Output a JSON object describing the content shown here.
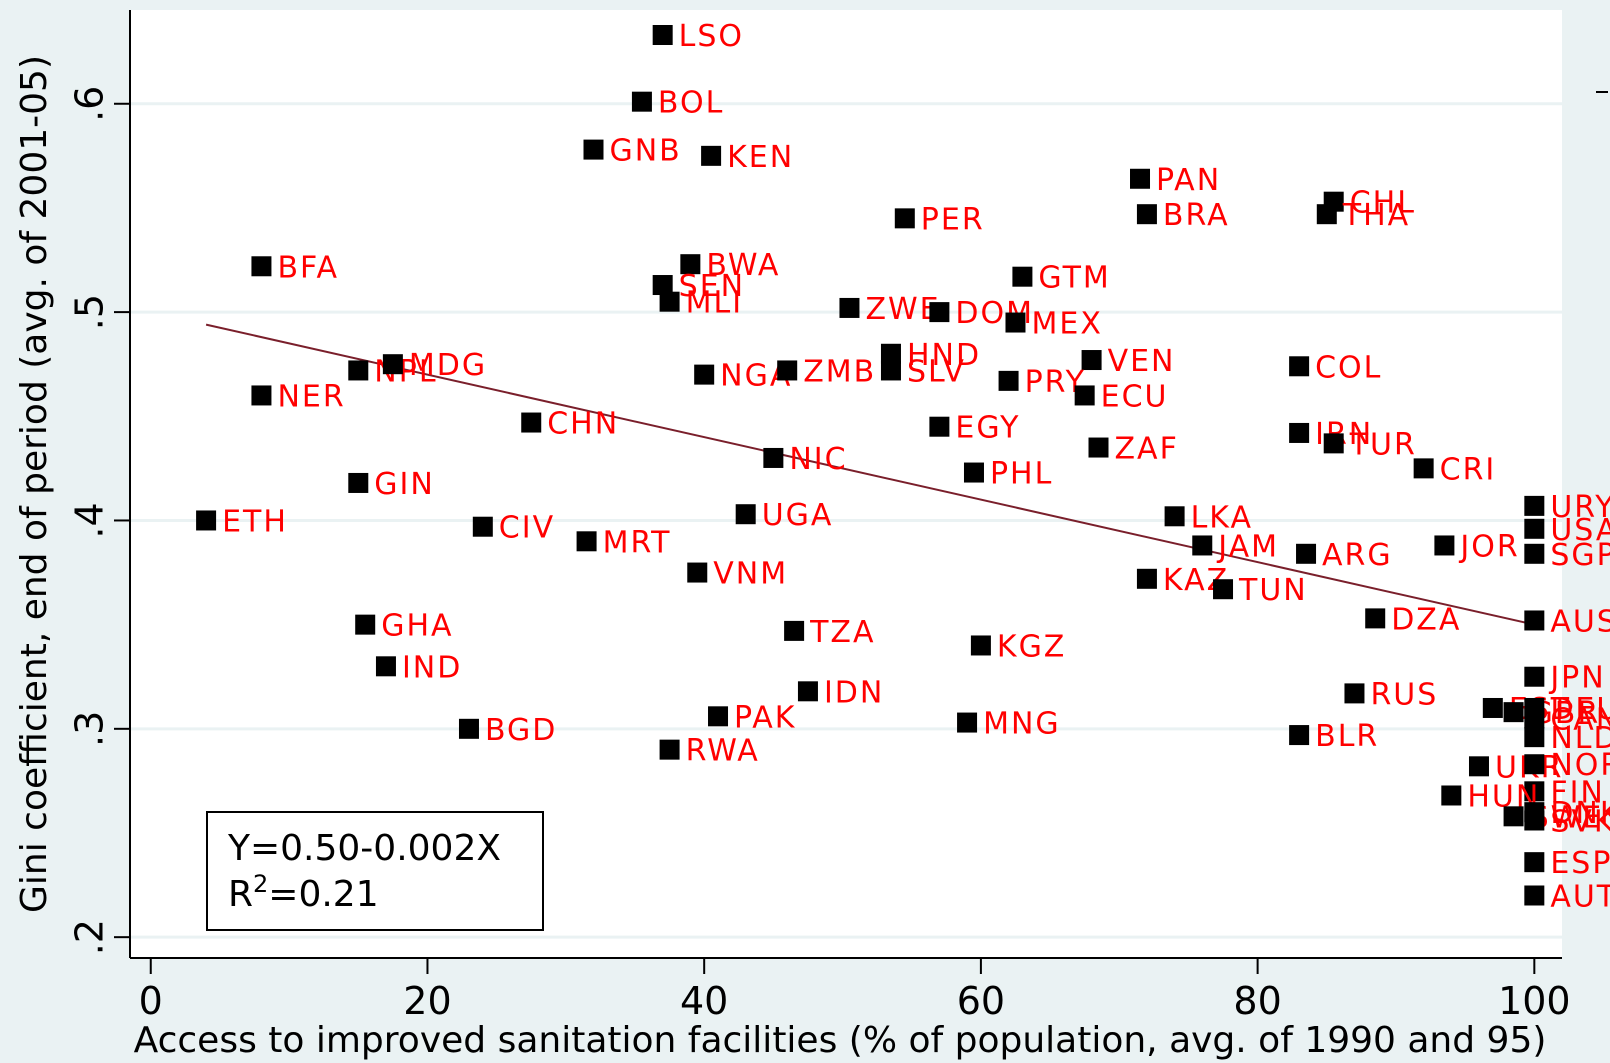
{
  "chart_data": {
    "type": "scatter",
    "xlabel": "Access to improved sanitation facilities (% of population, avg. of 1990 and 95)",
    "ylabel": "Gini coefficient, end of period (avg. of 2001-05)",
    "xlim": [
      -1.5,
      102
    ],
    "ylim": [
      0.19,
      0.645
    ],
    "x_ticks": [
      0,
      20,
      40,
      60,
      80,
      100
    ],
    "x_tick_labels": [
      "0",
      "20",
      "40",
      "60",
      "80",
      "100"
    ],
    "y_ticks": [
      0.2,
      0.3,
      0.4,
      0.5,
      0.6
    ],
    "y_tick_labels": [
      ".2",
      ".3",
      ".4",
      ".5",
      ".6"
    ],
    "grid": "horizontal",
    "marker_color": "#000000",
    "label_color": "#ff0000",
    "fit_color": "#7a1f2b",
    "background": "#eaf2f3",
    "fit_line": {
      "intercept": 0.5,
      "slope": -0.0015,
      "x_range": [
        4,
        100
      ]
    },
    "annotation": {
      "equation": "Y=0.50-0.002X",
      "r2_label": "R",
      "r2_sup": "2",
      "r2_value": "=0.21"
    },
    "points": [
      {
        "label": "LSO",
        "x": 37,
        "y": 0.633
      },
      {
        "label": "BOL",
        "x": 35.5,
        "y": 0.601
      },
      {
        "label": "GNB",
        "x": 32,
        "y": 0.578
      },
      {
        "label": "KEN",
        "x": 40.5,
        "y": 0.575
      },
      {
        "label": "PAN",
        "x": 71.5,
        "y": 0.564
      },
      {
        "label": "CHL",
        "x": 85.5,
        "y": 0.553
      },
      {
        "label": "THA",
        "x": 85,
        "y": 0.547
      },
      {
        "label": "PER",
        "x": 54.5,
        "y": 0.545
      },
      {
        "label": "BRA",
        "x": 72,
        "y": 0.547
      },
      {
        "label": "BFA",
        "x": 8,
        "y": 0.522
      },
      {
        "label": "BWA",
        "x": 39,
        "y": 0.523
      },
      {
        "label": "SEN",
        "x": 37,
        "y": 0.513
      },
      {
        "label": "MLI",
        "x": 37.5,
        "y": 0.505
      },
      {
        "label": "GTM",
        "x": 63,
        "y": 0.517
      },
      {
        "label": "ZWE",
        "x": 50.5,
        "y": 0.502
      },
      {
        "label": "DOM",
        "x": 57,
        "y": 0.5
      },
      {
        "label": "MEX",
        "x": 62.5,
        "y": 0.495
      },
      {
        "label": "HND",
        "x": 53.5,
        "y": 0.48
      },
      {
        "label": "SLV",
        "x": 53.5,
        "y": 0.472
      },
      {
        "label": "NPL",
        "x": 15,
        "y": 0.472
      },
      {
        "label": "MDG",
        "x": 17.5,
        "y": 0.475
      },
      {
        "label": "NGA",
        "x": 40,
        "y": 0.47
      },
      {
        "label": "ZMB",
        "x": 46,
        "y": 0.472
      },
      {
        "label": "VEN",
        "x": 68,
        "y": 0.477
      },
      {
        "label": "COL",
        "x": 83,
        "y": 0.474
      },
      {
        "label": "PRY",
        "x": 62,
        "y": 0.467
      },
      {
        "label": "NER",
        "x": 8,
        "y": 0.46
      },
      {
        "label": "ECU",
        "x": 67.5,
        "y": 0.46
      },
      {
        "label": "CHN",
        "x": 27.5,
        "y": 0.447
      },
      {
        "label": "EGY",
        "x": 57,
        "y": 0.445
      },
      {
        "label": "IRN",
        "x": 83,
        "y": 0.442
      },
      {
        "label": "TUR",
        "x": 85.5,
        "y": 0.437
      },
      {
        "label": "ZAF",
        "x": 68.5,
        "y": 0.435
      },
      {
        "label": "NIC",
        "x": 45,
        "y": 0.43
      },
      {
        "label": "CRI",
        "x": 92,
        "y": 0.425
      },
      {
        "label": "PHL",
        "x": 59.5,
        "y": 0.423
      },
      {
        "label": "GIN",
        "x": 15,
        "y": 0.418
      },
      {
        "label": "URY",
        "x": 100,
        "y": 0.407
      },
      {
        "label": "UGA",
        "x": 43,
        "y": 0.403
      },
      {
        "label": "LKA",
        "x": 74,
        "y": 0.402
      },
      {
        "label": "ETH",
        "x": 4,
        "y": 0.4
      },
      {
        "label": "USA",
        "x": 100,
        "y": 0.396
      },
      {
        "label": "CIV",
        "x": 24,
        "y": 0.397
      },
      {
        "label": "MRT",
        "x": 31.5,
        "y": 0.39
      },
      {
        "label": "JAM",
        "x": 76,
        "y": 0.388
      },
      {
        "label": "JOR",
        "x": 93.5,
        "y": 0.388
      },
      {
        "label": "SGP",
        "x": 100,
        "y": 0.384
      },
      {
        "label": "ARG",
        "x": 83.5,
        "y": 0.384
      },
      {
        "label": "VNM",
        "x": 39.5,
        "y": 0.375
      },
      {
        "label": "KAZ",
        "x": 72,
        "y": 0.372
      },
      {
        "label": "TUN",
        "x": 77.5,
        "y": 0.367
      },
      {
        "label": "DZA",
        "x": 88.5,
        "y": 0.353
      },
      {
        "label": "AUS",
        "x": 100,
        "y": 0.352
      },
      {
        "label": "GHA",
        "x": 15.5,
        "y": 0.35
      },
      {
        "label": "TZA",
        "x": 46.5,
        "y": 0.347
      },
      {
        "label": "KGZ",
        "x": 60,
        "y": 0.34
      },
      {
        "label": "IND",
        "x": 17,
        "y": 0.33
      },
      {
        "label": "JPN",
        "x": 100,
        "y": 0.325
      },
      {
        "label": "IDN",
        "x": 47.5,
        "y": 0.318
      },
      {
        "label": "RUS",
        "x": 87,
        "y": 0.317
      },
      {
        "label": "EST",
        "x": 97,
        "y": 0.31
      },
      {
        "label": "GBR",
        "x": 98.5,
        "y": 0.308
      },
      {
        "label": "DEU",
        "x": 100,
        "y": 0.31
      },
      {
        "label": "CAN",
        "x": 100,
        "y": 0.305
      },
      {
        "label": "PAK",
        "x": 41,
        "y": 0.306
      },
      {
        "label": "MNG",
        "x": 59,
        "y": 0.303
      },
      {
        "label": "BGD",
        "x": 23,
        "y": 0.3
      },
      {
        "label": "NLD",
        "x": 100,
        "y": 0.296
      },
      {
        "label": "BLR",
        "x": 83,
        "y": 0.297
      },
      {
        "label": "RWA",
        "x": 37.5,
        "y": 0.29
      },
      {
        "label": "UKR",
        "x": 96,
        "y": 0.282
      },
      {
        "label": "NOR",
        "x": 100,
        "y": 0.283
      },
      {
        "label": "FIN",
        "x": 100,
        "y": 0.27
      },
      {
        "label": "HUN",
        "x": 94,
        "y": 0.268
      },
      {
        "label": "SWE",
        "x": 98.5,
        "y": 0.258
      },
      {
        "label": "DNK",
        "x": 100,
        "y": 0.26
      },
      {
        "label": "SVK",
        "x": 100,
        "y": 0.256
      },
      {
        "label": "ESP",
        "x": 100,
        "y": 0.236
      },
      {
        "label": "AUT",
        "x": 100,
        "y": 0.22
      }
    ]
  }
}
